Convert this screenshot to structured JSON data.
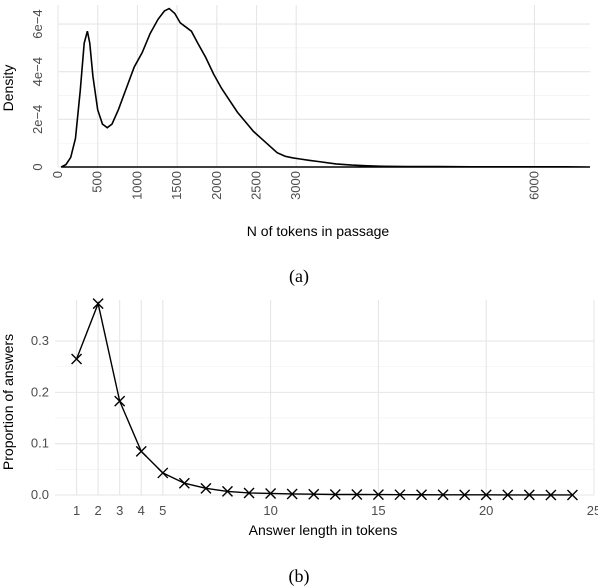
{
  "chart_data": [
    {
      "panel": "a",
      "caption": "(a)",
      "type": "area",
      "xlabel": "N of tokens in passage",
      "ylabel": "Density",
      "xlim": [
        0,
        6700
      ],
      "ylim": [
        0,
        0.00068
      ],
      "x_ticks": [
        {
          "value": 0,
          "label": "0"
        },
        {
          "value": 500,
          "label": "500"
        },
        {
          "value": 1000,
          "label": "1000"
        },
        {
          "value": 1500,
          "label": "1500"
        },
        {
          "value": 2000,
          "label": "2000"
        },
        {
          "value": 2500,
          "label": "2500"
        },
        {
          "value": 3000,
          "label": "3000"
        },
        {
          "value": 6000,
          "label": "6000"
        }
      ],
      "y_ticks": [
        {
          "value": 0,
          "label": "0"
        },
        {
          "value": 0.0002,
          "label": "2e−4"
        },
        {
          "value": 0.0004,
          "label": "4e−4"
        },
        {
          "value": 0.0006,
          "label": "6e−4"
        }
      ],
      "grid": true,
      "series": [
        {
          "points": [
            [
              40,
              0
            ],
            [
              100,
              1e-05
            ],
            [
              160,
              4e-05
            ],
            [
              220,
              0.00012
            ],
            [
              280,
              0.00032
            ],
            [
              330,
              0.00052
            ],
            [
              370,
              0.00057
            ],
            [
              400,
              0.00052
            ],
            [
              440,
              0.00038
            ],
            [
              500,
              0.00024
            ],
            [
              560,
              0.00018
            ],
            [
              620,
              0.000165
            ],
            [
              680,
              0.00018
            ],
            [
              760,
              0.00024
            ],
            [
              860,
              0.00033
            ],
            [
              960,
              0.00042
            ],
            [
              1060,
              0.00048
            ],
            [
              1160,
              0.00056
            ],
            [
              1260,
              0.00062
            ],
            [
              1340,
              0.000655
            ],
            [
              1400,
              0.000665
            ],
            [
              1470,
              0.000645
            ],
            [
              1540,
              0.000605
            ],
            [
              1600,
              0.00059
            ],
            [
              1680,
              0.00057
            ],
            [
              1760,
              0.00052
            ],
            [
              1860,
              0.00046
            ],
            [
              1960,
              0.00039
            ],
            [
              2060,
              0.00033
            ],
            [
              2160,
              0.00028
            ],
            [
              2260,
              0.00023
            ],
            [
              2360,
              0.00019
            ],
            [
              2460,
              0.00015
            ],
            [
              2560,
              0.00012
            ],
            [
              2660,
              9e-05
            ],
            [
              2760,
              6e-05
            ],
            [
              2860,
              4.5e-05
            ],
            [
              2960,
              3.8e-05
            ],
            [
              3060,
              3.3e-05
            ],
            [
              3160,
              2.8e-05
            ],
            [
              3300,
              2.2e-05
            ],
            [
              3500,
              1.3e-05
            ],
            [
              3700,
              8e-06
            ],
            [
              3900,
              5e-06
            ],
            [
              4100,
              3e-06
            ],
            [
              4400,
              2e-06
            ],
            [
              4800,
              2e-06
            ],
            [
              5200,
              1e-06
            ],
            [
              5600,
              1e-06
            ],
            [
              6000,
              1e-06
            ],
            [
              6400,
              1e-06
            ],
            [
              6700,
              0
            ]
          ]
        }
      ]
    },
    {
      "panel": "b",
      "caption": "(b)",
      "type": "line",
      "xlabel": "Answer length in tokens",
      "ylabel": "Proportion of answers",
      "xlim": [
        0,
        25
      ],
      "ylim": [
        0,
        0.38
      ],
      "x_ticks": [
        {
          "value": 1,
          "label": "1"
        },
        {
          "value": 2,
          "label": "2"
        },
        {
          "value": 3,
          "label": "3"
        },
        {
          "value": 4,
          "label": "4"
        },
        {
          "value": 5,
          "label": "5"
        },
        {
          "value": 10,
          "label": "10"
        },
        {
          "value": 15,
          "label": "15"
        },
        {
          "value": 20,
          "label": "20"
        },
        {
          "value": 25,
          "label": "25"
        }
      ],
      "y_ticks": [
        {
          "value": 0.0,
          "label": "0.0"
        },
        {
          "value": 0.1,
          "label": "0.1"
        },
        {
          "value": 0.2,
          "label": "0.2"
        },
        {
          "value": 0.3,
          "label": "0.3"
        }
      ],
      "grid": true,
      "marker": "x",
      "x": [
        1,
        2,
        3,
        4,
        5,
        6,
        7,
        8,
        9,
        10,
        11,
        12,
        13,
        14,
        15,
        16,
        17,
        18,
        19,
        20,
        21,
        22,
        23,
        24
      ],
      "series": [
        {
          "values": [
            0.265,
            0.373,
            0.183,
            0.085,
            0.043,
            0.023,
            0.013,
            0.007,
            0.004,
            0.003,
            0.002,
            0.0015,
            0.001,
            0.001,
            0.0008,
            0.0006,
            0.0005,
            0.0004,
            0.0003,
            0.0003,
            0.0002,
            0.0002,
            0.0001,
            0.0001
          ]
        }
      ]
    }
  ]
}
